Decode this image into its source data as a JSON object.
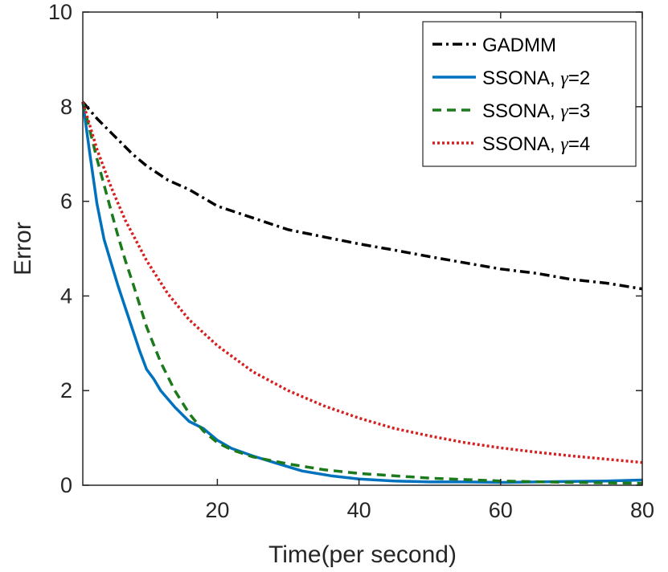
{
  "chart_data": {
    "type": "line",
    "title": "",
    "xlabel": "Time(per second)",
    "ylabel": "Error",
    "xlim": [
      1,
      80
    ],
    "ylim": [
      0,
      10
    ],
    "xticks": [
      20,
      40,
      60,
      80
    ],
    "yticks": [
      0,
      2,
      4,
      6,
      8,
      10
    ],
    "xtick_labels": [
      "20",
      "40",
      "60",
      "80"
    ],
    "ytick_labels": [
      "0",
      "2",
      "4",
      "6",
      "8",
      "10"
    ],
    "grid": false,
    "legend_position": "top-right",
    "series": [
      {
        "name": "GADMM",
        "legend_prefix": "GADMM",
        "legend_gamma": "",
        "legend_suffix": "",
        "color": "#000000",
        "dash": "dash-dot",
        "x": [
          1,
          3,
          5,
          8,
          10,
          13,
          16,
          20,
          25,
          30,
          35,
          40,
          45,
          50,
          55,
          60,
          65,
          70,
          75,
          80
        ],
        "y": [
          8.1,
          7.75,
          7.45,
          7.0,
          6.75,
          6.45,
          6.25,
          5.9,
          5.65,
          5.4,
          5.25,
          5.1,
          4.97,
          4.83,
          4.7,
          4.57,
          4.48,
          4.35,
          4.27,
          4.15
        ]
      },
      {
        "name": "SSONA, γ=2",
        "legend_prefix": "SSONA, ",
        "legend_gamma": "γ",
        "legend_suffix": "=2",
        "color": "#0072BD",
        "dash": "solid",
        "x": [
          1,
          2,
          3,
          4,
          5,
          6,
          7,
          8,
          9,
          10,
          11,
          12,
          14,
          16,
          18,
          20,
          22,
          25,
          28,
          32,
          36,
          40,
          45,
          50,
          55,
          60,
          65,
          70,
          75,
          80
        ],
        "y": [
          8.1,
          7.0,
          5.95,
          5.2,
          4.7,
          4.2,
          3.75,
          3.3,
          2.85,
          2.45,
          2.25,
          2.0,
          1.65,
          1.35,
          1.2,
          0.95,
          0.78,
          0.62,
          0.48,
          0.3,
          0.2,
          0.13,
          0.09,
          0.07,
          0.07,
          0.06,
          0.07,
          0.08,
          0.09,
          0.11
        ]
      },
      {
        "name": "SSONA, γ=3",
        "legend_prefix": "SSONA, ",
        "legend_gamma": "γ",
        "legend_suffix": "=3",
        "color": "#1B7A1B",
        "dash": "dashed",
        "x": [
          1,
          2,
          3,
          4,
          5,
          6,
          7,
          8,
          10,
          12,
          14,
          16,
          18,
          20,
          22,
          25,
          30,
          35,
          40,
          50,
          60,
          70,
          80
        ],
        "y": [
          8.1,
          7.5,
          6.9,
          6.35,
          5.8,
          5.25,
          4.75,
          4.3,
          3.35,
          2.6,
          2.0,
          1.52,
          1.15,
          0.9,
          0.75,
          0.6,
          0.45,
          0.33,
          0.25,
          0.15,
          0.09,
          0.06,
          0.04
        ]
      },
      {
        "name": "SSONA, γ=4",
        "legend_prefix": "SSONA, ",
        "legend_gamma": "γ",
        "legend_suffix": "=4",
        "color": "#D62020",
        "dash": "dotted",
        "x": [
          1,
          3,
          5,
          7,
          10,
          13,
          16,
          20,
          25,
          30,
          35,
          40,
          45,
          50,
          55,
          60,
          65,
          70,
          75,
          80
        ],
        "y": [
          8.1,
          7.1,
          6.3,
          5.6,
          4.75,
          4.05,
          3.5,
          2.95,
          2.4,
          2.0,
          1.68,
          1.42,
          1.2,
          1.04,
          0.9,
          0.79,
          0.7,
          0.62,
          0.55,
          0.48
        ]
      }
    ]
  }
}
